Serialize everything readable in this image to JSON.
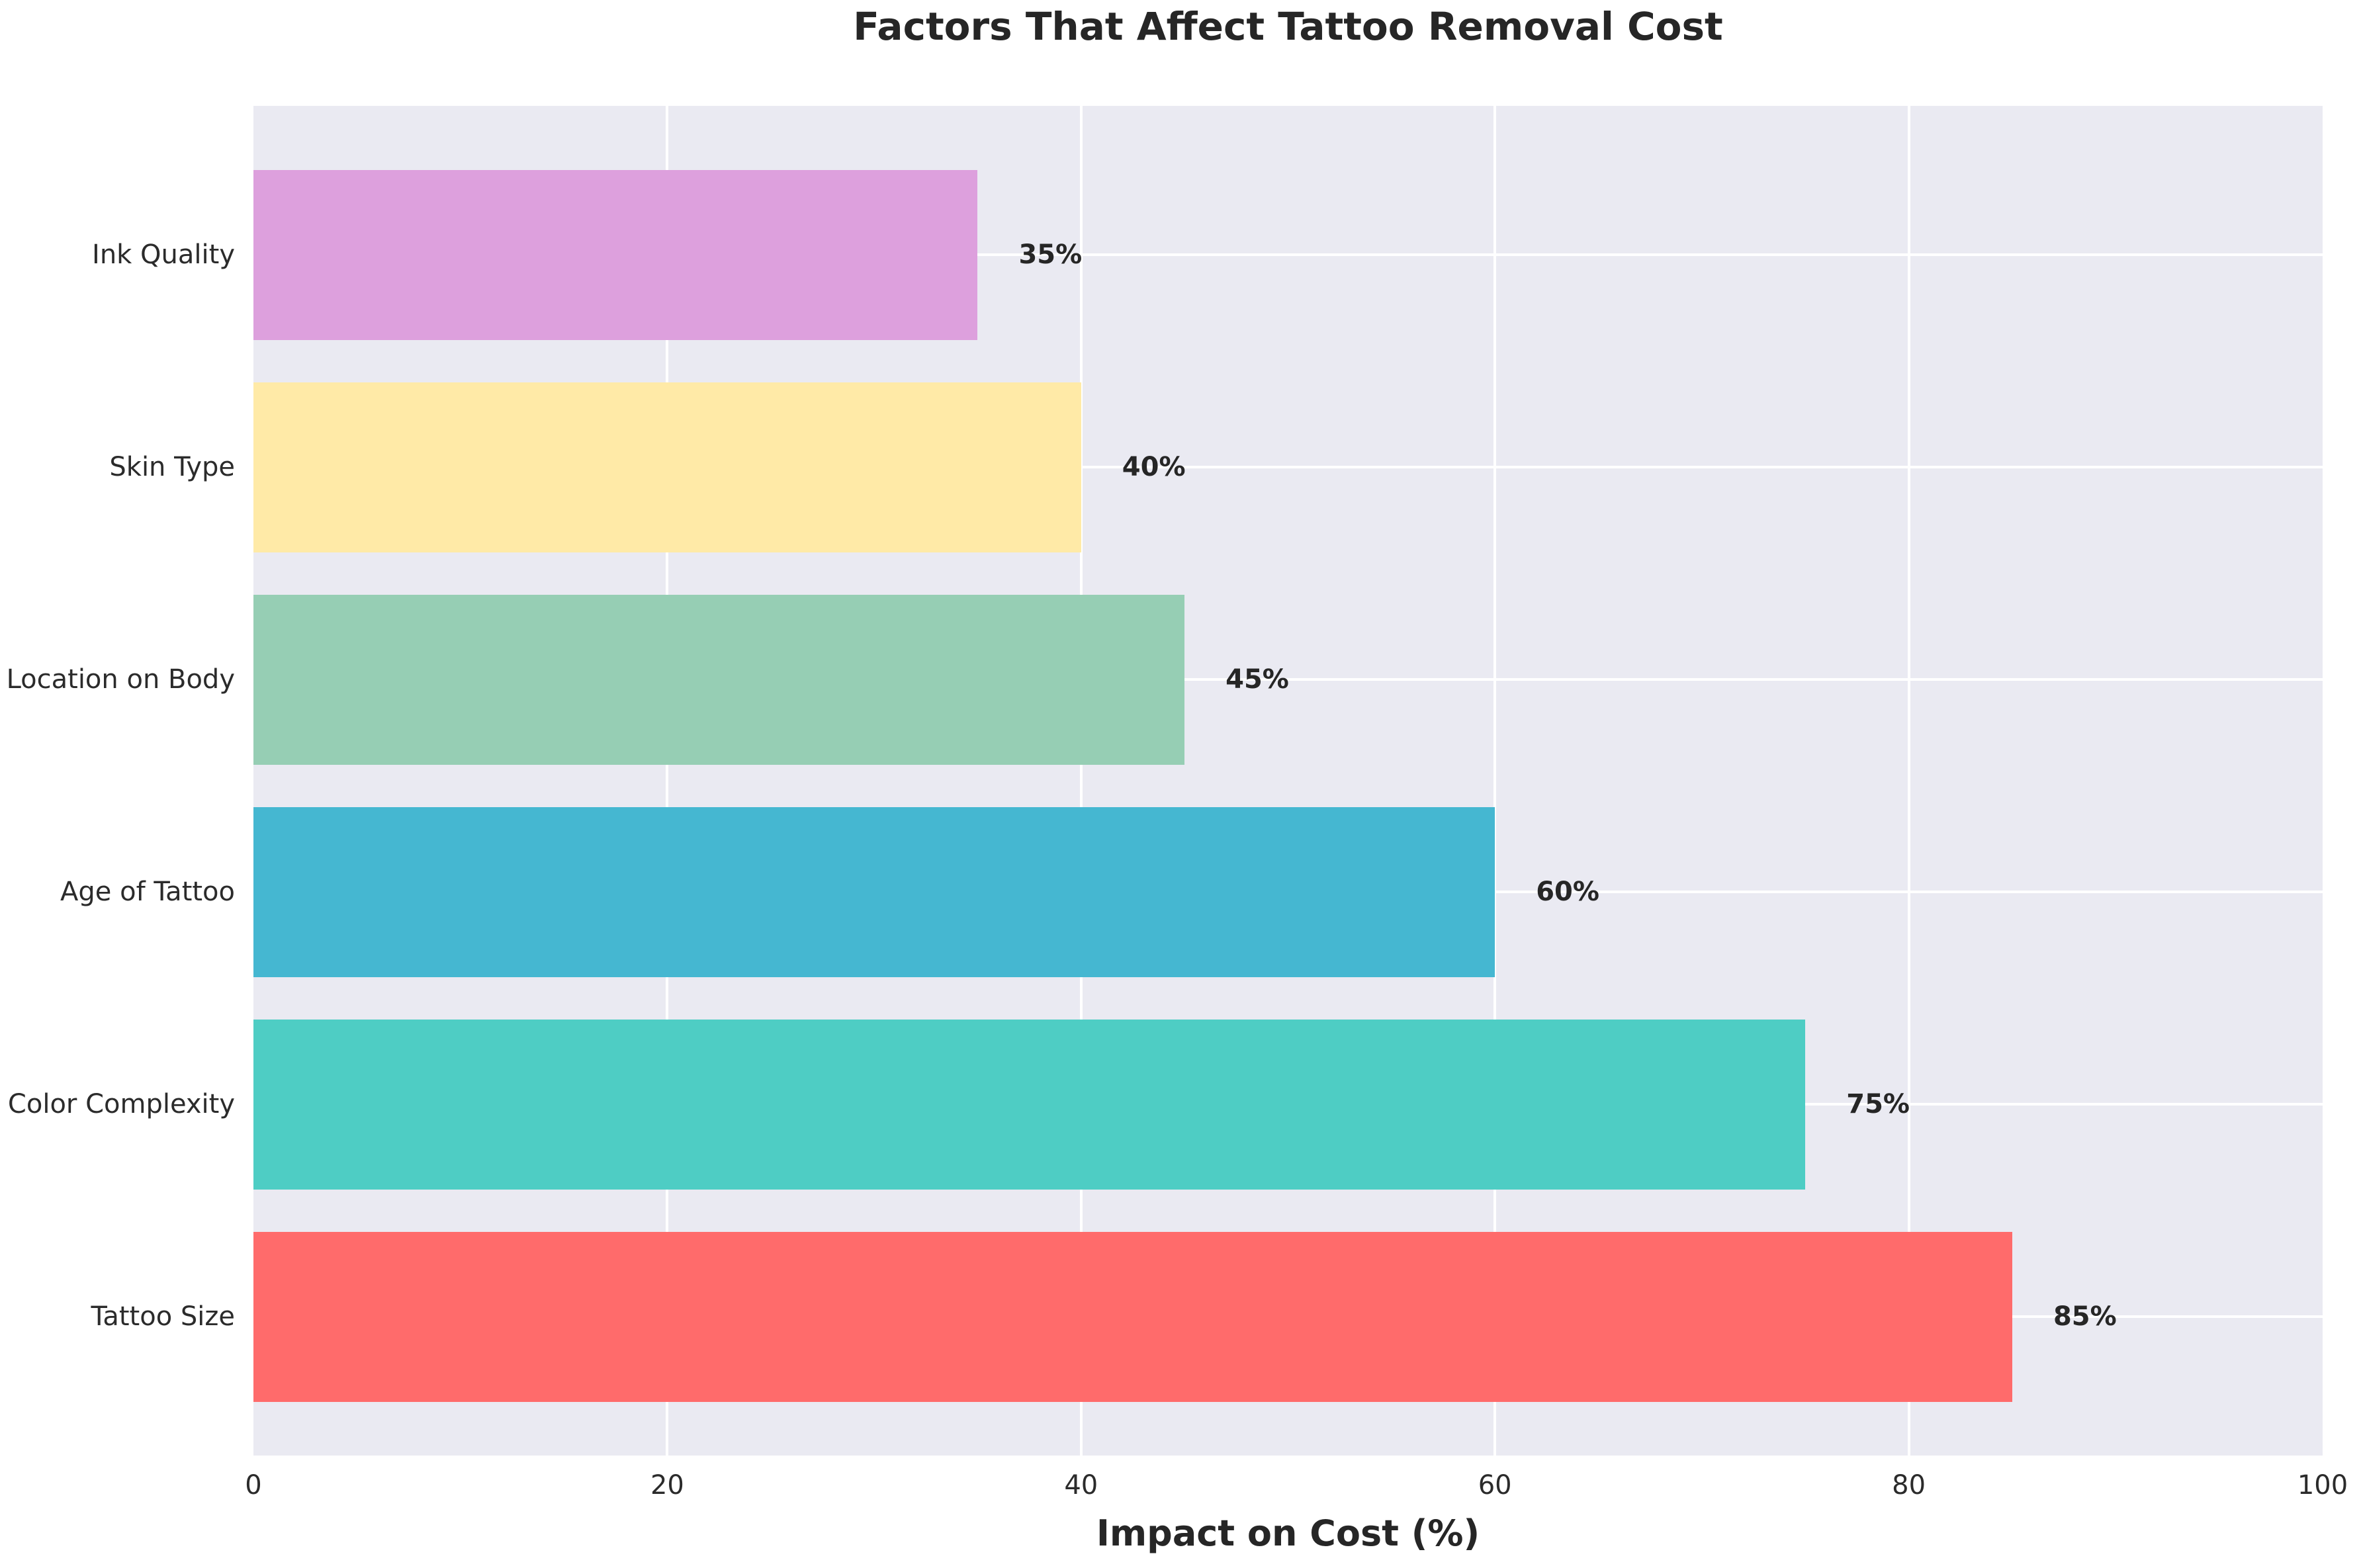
{
  "chart_data": {
    "type": "bar",
    "orientation": "horizontal",
    "title": "Factors That Affect Tattoo Removal Cost",
    "xlabel": "Impact on Cost (%)",
    "ylabel": "",
    "categories_top_to_bottom": [
      "Ink Quality",
      "Skin Type",
      "Location on Body",
      "Age of Tattoo",
      "Color Complexity",
      "Tattoo Size"
    ],
    "values": [
      35,
      40,
      45,
      60,
      75,
      85
    ],
    "value_labels": [
      "35%",
      "40%",
      "45%",
      "60%",
      "75%",
      "85%"
    ],
    "bar_colors": [
      "#dda0dd",
      "#ffeaa7",
      "#96ceb4",
      "#45b7d1",
      "#4ecdc4",
      "#ff6b6b"
    ],
    "xlim": [
      0,
      100
    ],
    "xticks": [
      0,
      20,
      40,
      60,
      80,
      100
    ],
    "grid": true,
    "legend": false,
    "plot_background": "#eaeaf2",
    "grid_color": "#ffffff",
    "title_color": "#262626",
    "tick_label_color": "#2b2b2b"
  }
}
